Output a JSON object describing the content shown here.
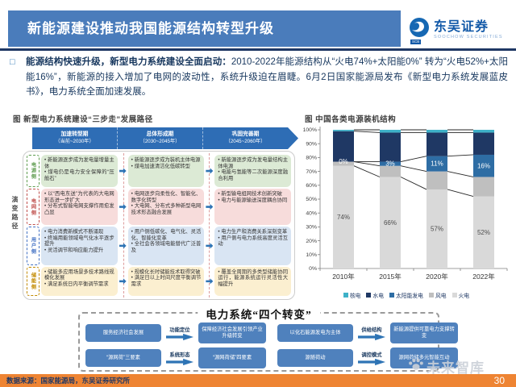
{
  "header": {
    "title": "新能源建设推动我国能源结构转型升级",
    "brand_name": "东吴证券",
    "brand_sub": "SOOCHOW SECURITIES",
    "brand_badge": "SCB"
  },
  "intro": {
    "bullet": "□",
    "text_bold": "能源结构快速升级，新型电力系统建设全面启动：",
    "text_rest": "2010-2022年能源结构从“火电74%+太阳能0%” 转为“火电52%+太阳能16%”，新能源的接入增加了电网的波动性，系统升级迫在眉睫。6月2日国家能源局发布《新型电力系统发展蓝皮书》，电力系统全面加速发展。"
  },
  "left_figure": {
    "title": "图 新型电力系统建设“三步走”发展路径",
    "axis_label": "演变路径",
    "phases": [
      {
        "name": "加速转型期",
        "period": "（当前~2030年）"
      },
      {
        "name": "总体形成期",
        "period": "（2030~2045年）"
      },
      {
        "name": "巩固完善期",
        "period": "（2045~2060年）"
      }
    ],
    "rows": [
      {
        "label": "电源侧",
        "colors": {
          "bg": "#dcead5",
          "accent": "#5e9c4f"
        },
        "cols": [
          [
            "新能源逐步成为发电量增量主体",
            "煤电仍是电力安全保障的“压舱石”"
          ],
          [
            "新能源逐步成为装机主体电源",
            "煤电加速清洁化低碳转型"
          ],
          [
            "新能源逐步成为发电量结构主体电源",
            "电能与氢能等二次能源深度融合利用"
          ]
        ]
      },
      {
        "label": "电网侧",
        "colors": {
          "bg": "#f7dcdb",
          "accent": "#c0504d"
        },
        "cols": [
          [
            "以“西电东送”为代表的大电网形态进一步扩大",
            "分布式智能电网支撑作用愈发凸显"
          ],
          [
            "电网逐步向柔性化、智能化、数字化转型",
            "大电网、分布式多种新型电网技术形态融合发展"
          ],
          [
            "新型输电组网技术创新突破",
            "电力与能源输送深度耦合协同"
          ]
        ]
      },
      {
        "label": "用户侧",
        "colors": {
          "bg": "#d9e5f3",
          "accent": "#4472c4"
        },
        "cols": [
          [
            "电力消费新模式不断涌现",
            "终端用能领域电气化水平逐步提升",
            "灵活调节和响应能力提升"
          ],
          [
            "用户侧低碳化、电气化、灵活化、智能化变革",
            "全社会各领域电能替代广泛普及"
          ],
          [
            "电力生产和消费关系深刻变革",
            "用户侧与电力系统高度灵活互动"
          ]
        ]
      },
      {
        "label": "储能侧",
        "colors": {
          "bg": "#fbefd0",
          "accent": "#c28a00"
        },
        "cols": [
          [
            "储能多应用场景多技术路线规模化发展",
            "满足系统日内平衡调节需求"
          ],
          [
            "规模化长时储能技术取得突破",
            "满足日以上时间尺度平衡调节需求"
          ],
          [
            "覆盖全周期的多类型储能协同运行，能源系统运行灵活性大幅提升"
          ]
        ]
      }
    ]
  },
  "chart_data": {
    "type": "bar",
    "stacked": true,
    "title": "图 中国各类电源装机结构",
    "xlabel": "",
    "ylabel": "",
    "ylim": [
      0,
      100
    ],
    "ytick_step": 10,
    "ytick_suffix": "%",
    "categories": [
      "2010年",
      "2015年",
      "2020年",
      "2022年"
    ],
    "series": [
      {
        "name": "火电",
        "color": "#d9d9d9",
        "values": [
          74,
          66,
          57,
          52
        ],
        "labels": [
          "74%",
          "66%",
          "57%",
          "52%"
        ],
        "label_color": "#4d4d4d"
      },
      {
        "name": "风电",
        "color": "#bfbfbf",
        "values": [
          3,
          8,
          13,
          14
        ]
      },
      {
        "name": "太阳能发电",
        "color": "#2e6da4",
        "values": [
          0,
          3,
          11,
          16
        ],
        "labels": [
          "0%",
          "3%",
          "11%",
          "16%"
        ],
        "label_color": "#ffffff"
      },
      {
        "name": "水电",
        "color": "#1f3864",
        "values": [
          22,
          21,
          17,
          16
        ]
      },
      {
        "name": "核电",
        "color": "#3eb1c8",
        "values": [
          1,
          2,
          2,
          2
        ]
      }
    ],
    "legend": [
      "核电",
      "水电",
      "太阳能发电",
      "风电",
      "火电"
    ],
    "legend_position": "bottom",
    "grid": false,
    "connector_lines": true
  },
  "bottom_figure": {
    "title": "电力系统“四个转变”",
    "pairs": [
      {
        "from": "服务经济社会发展",
        "arrow_label": "功能定位",
        "to": "保障经济社会发展引领产业升级转变"
      },
      {
        "from": "以化石能源发电为主体",
        "arrow_label": "供给结构",
        "to": "新能源提供可靠电力支撑转变"
      },
      {
        "from": "“源网荷”三要素",
        "arrow_label": "系统形态",
        "to": "“源网荷储”四要素"
      },
      {
        "from": "源随荷动",
        "arrow_label": "调控模式",
        "to": "源网荷储多元智能互动"
      }
    ]
  },
  "watermark": {
    "text": "未来智库"
  },
  "footer": {
    "source": "数据来源：国家能源局，东吴证券研究所",
    "page": "30"
  },
  "colors": {
    "header_bar": "#4a7cbb",
    "divider_navy": "#1f3864",
    "accent_blue": "#2e74b5",
    "box_blue": "#4f81bd",
    "footer_orange": "#ee8433"
  }
}
